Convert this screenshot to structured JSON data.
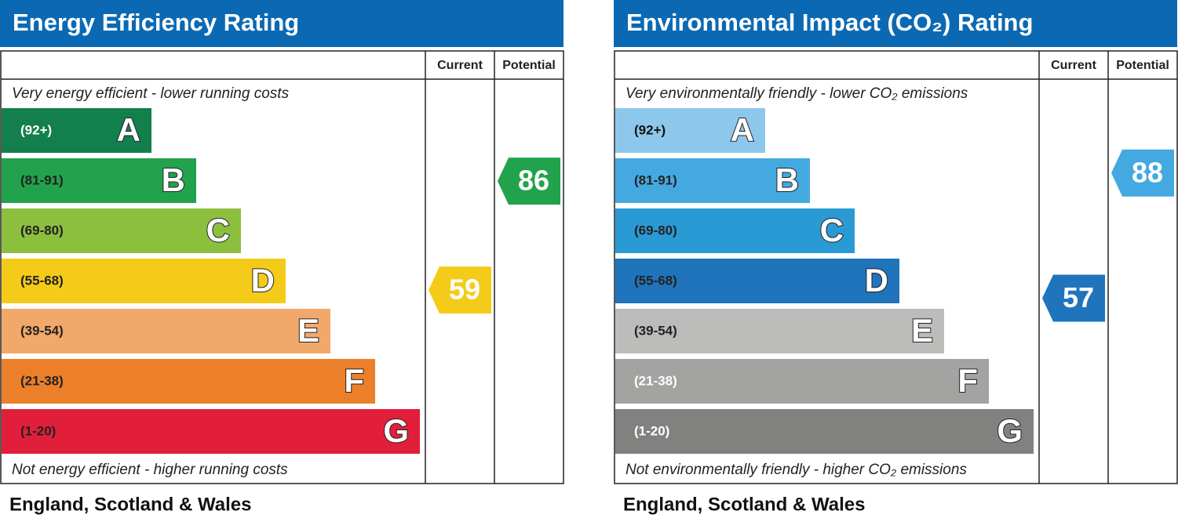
{
  "panels": [
    {
      "title": "Energy Efficiency Rating",
      "header": {
        "current": "Current",
        "potential": "Potential"
      },
      "top_note": "Very energy efficient - lower running costs",
      "bottom_note": "Not energy efficient - higher running costs",
      "region": "England, Scotland & Wales",
      "bands": [
        {
          "range": "(92+)",
          "letter": "A",
          "color": "#137f4c",
          "text_color": "#ffffff"
        },
        {
          "range": "(81-91)",
          "letter": "B",
          "color": "#22a24c",
          "text_color": "#222222"
        },
        {
          "range": "(69-80)",
          "letter": "C",
          "color": "#8dbf3f",
          "text_color": "#222222"
        },
        {
          "range": "(55-68)",
          "letter": "D",
          "color": "#f5cb1a",
          "text_color": "#222222"
        },
        {
          "range": "(39-54)",
          "letter": "E",
          "color": "#f2a86a",
          "text_color": "#222222"
        },
        {
          "range": "(21-38)",
          "letter": "F",
          "color": "#ec7f2a",
          "text_color": "#222222"
        },
        {
          "range": "(1-20)",
          "letter": "G",
          "color": "#e21f3a",
          "text_color": "#222222"
        }
      ],
      "current": {
        "value": 59,
        "color": "#f5cb1a"
      },
      "potential": {
        "value": 86,
        "color": "#22a24c"
      }
    },
    {
      "title": "Environmental Impact (CO₂) Rating",
      "header": {
        "current": "Current",
        "potential": "Potential"
      },
      "top_note": "Very environmentally friendly - lower CO₂ emissions",
      "bottom_note": "Not environmentally friendly - higher CO₂ emissions",
      "region": "England, Scotland & Wales",
      "bands": [
        {
          "range": "(92+)",
          "letter": "A",
          "color": "#8dc8ec",
          "text_color": "#111111"
        },
        {
          "range": "(81-91)",
          "letter": "B",
          "color": "#44a9e0",
          "text_color": "#222222"
        },
        {
          "range": "(69-80)",
          "letter": "C",
          "color": "#2a9ad4",
          "text_color": "#222222"
        },
        {
          "range": "(55-68)",
          "letter": "D",
          "color": "#1f74bc",
          "text_color": "#222222"
        },
        {
          "range": "(39-54)",
          "letter": "E",
          "color": "#bcbcbb",
          "text_color": "#222222"
        },
        {
          "range": "(21-38)",
          "letter": "F",
          "color": "#a3a3a2",
          "text_color": "#ffffff"
        },
        {
          "range": "(1-20)",
          "letter": "G",
          "color": "#818180",
          "text_color": "#ffffff"
        }
      ],
      "current": {
        "value": 57,
        "color": "#1f74bc"
      },
      "potential": {
        "value": 88,
        "color": "#44a9e0"
      }
    }
  ]
}
